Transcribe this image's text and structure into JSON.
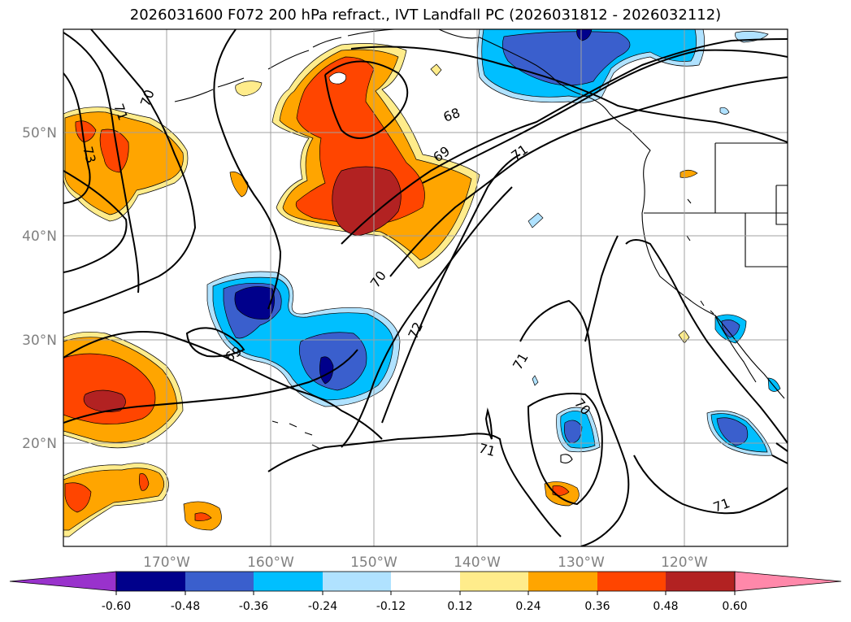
{
  "title": "2026031600 F072 200 hPa refract., IVT Landfall PC (2026031812 - 2026032112)",
  "map": {
    "lat_labels": [
      "50°N",
      "40°N",
      "30°N",
      "20°N"
    ],
    "lon_labels": [
      "170°W",
      "160°W",
      "150°W",
      "140°W",
      "130°W",
      "120°W"
    ],
    "lat_values": [
      50,
      40,
      30,
      20
    ],
    "lon_values": [
      -170,
      -160,
      -150,
      -140,
      -130,
      -120
    ],
    "extent": {
      "lon": [
        -180,
        -110
      ],
      "lat": [
        10,
        60
      ]
    },
    "contour_labels": [
      "71",
      "70",
      "73",
      "68",
      "69",
      "71",
      "70",
      "72",
      "69",
      "71",
      "70",
      "71",
      "71"
    ]
  },
  "colorbar": {
    "levels": [
      "-0.60",
      "-0.48",
      "-0.36",
      "-0.24",
      "-0.12",
      "0.12",
      "0.24",
      "0.36",
      "0.48",
      "0.60"
    ],
    "colors": [
      "#9932cc",
      "#00008b",
      "#3a5fcd",
      "#00bfff",
      "#b0e2ff",
      "#ffffff",
      "#ffec8b",
      "#ffa500",
      "#ff4500",
      "#b22222",
      "#ff88aa"
    ]
  }
}
